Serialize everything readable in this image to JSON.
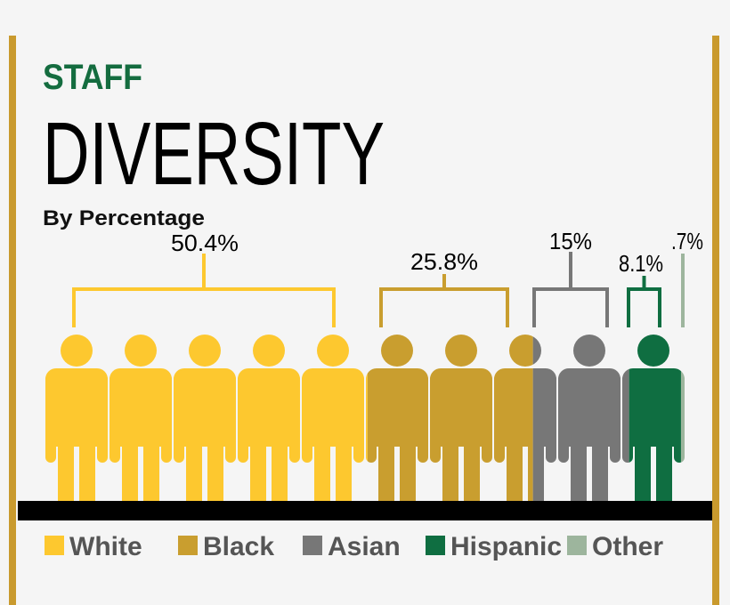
{
  "header": {
    "kicker": "STAFF",
    "title": "DIVERSITY",
    "subtitle": "By Percentage"
  },
  "colors": {
    "background": "#f5f5f5",
    "frame": "#c99a2e",
    "ground": "#000000",
    "kicker": "#146c3f",
    "legend_text": "#555555"
  },
  "chart_data": {
    "type": "pictograph",
    "title": "DIVERSITY",
    "subtitle": "By Percentage",
    "unit": "%",
    "figures_total": 10,
    "categories": [
      "White",
      "Black",
      "Asian",
      "Hispanic",
      "Other"
    ],
    "values": [
      50.4,
      25.8,
      15,
      8.1,
      0.7
    ],
    "labels": [
      "50.4%",
      "25.8%",
      "15%",
      "8.1%",
      ".7%"
    ],
    "colors": [
      "#fdc82f",
      "#c99e2f",
      "#777777",
      "#0f6e41",
      "#9db59d"
    ],
    "legend_position": "bottom"
  }
}
